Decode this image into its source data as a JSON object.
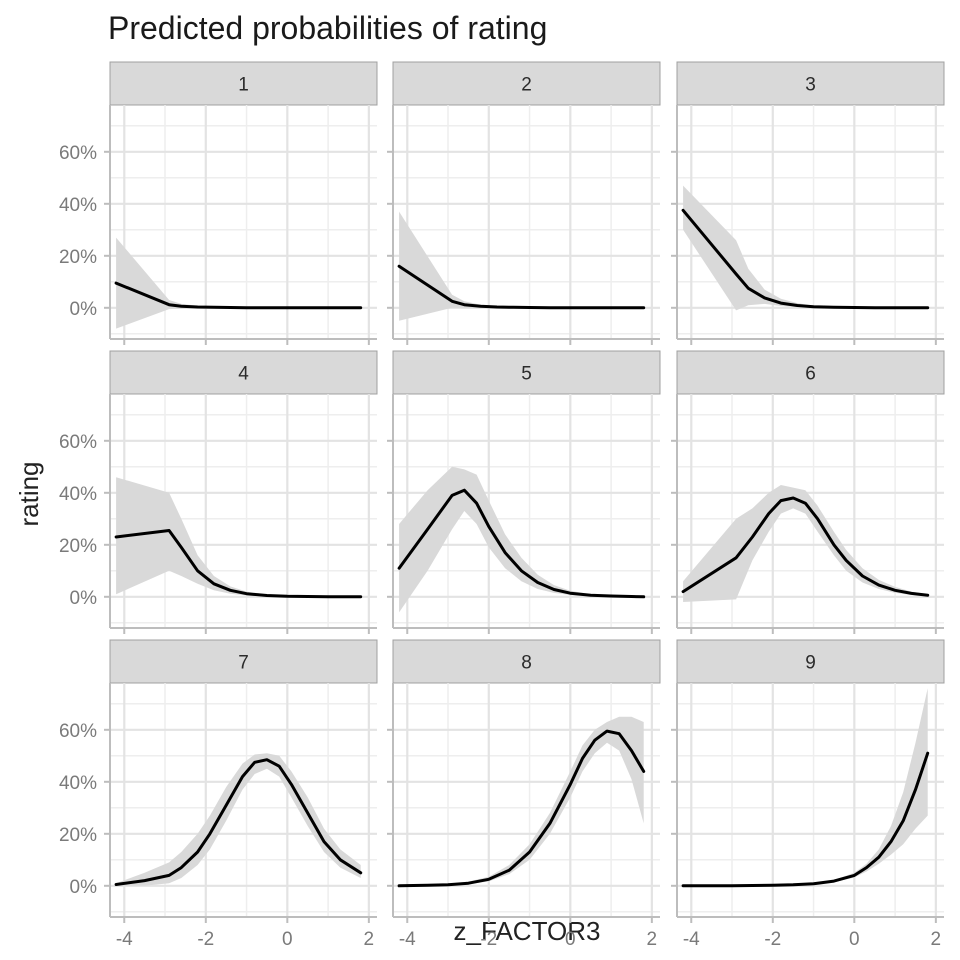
{
  "chart_data": {
    "type": "line",
    "title": "Predicted probabilities of rating",
    "xlabel": "z_FACTOR3",
    "ylabel": "rating",
    "xlim": [
      -4.35,
      2.2
    ],
    "ylim": [
      -0.12,
      0.78
    ],
    "x_ticks": [
      -4,
      -2,
      0,
      2
    ],
    "x_tick_labels": [
      "-4",
      "-2",
      "0",
      "2"
    ],
    "y_ticks": [
      0,
      0.2,
      0.4,
      0.6
    ],
    "y_tick_labels": [
      "0%",
      "20%",
      "40%",
      "60%"
    ],
    "grid": true,
    "legend": "none",
    "line_color": "#000000",
    "ribbon_color": "#d9d9d9",
    "strip_color": "#d9d9d9",
    "panels": [
      {
        "label": "1",
        "x": [
          -4.2,
          -2.9,
          -2.6,
          -2.2,
          -1.8,
          -1.4,
          -1.0,
          -0.5,
          0.0,
          0.5,
          1.0,
          1.5,
          1.8
        ],
        "y": [
          0.095,
          0.012,
          0.006,
          0.003,
          0.002,
          0.001,
          0.0,
          0.0,
          0.0,
          0.0,
          0.0,
          0.0,
          0.0
        ],
        "lower": [
          -0.08,
          -0.005,
          -0.003,
          -0.002,
          -0.001,
          0.0,
          0.0,
          0.0,
          0.0,
          0.0,
          0.0,
          0.0,
          0.0
        ],
        "upper": [
          0.27,
          0.03,
          0.015,
          0.008,
          0.004,
          0.002,
          0.001,
          0.0,
          0.0,
          0.0,
          0.0,
          0.0,
          0.0
        ]
      },
      {
        "label": "2",
        "x": [
          -4.2,
          -2.9,
          -2.6,
          -2.2,
          -1.8,
          -1.4,
          -1.0,
          -0.5,
          0.0,
          0.5,
          1.0,
          1.5,
          1.8
        ],
        "y": [
          0.16,
          0.025,
          0.012,
          0.006,
          0.003,
          0.002,
          0.001,
          0.0,
          0.0,
          0.0,
          0.0,
          0.0,
          0.0
        ],
        "lower": [
          -0.05,
          0.0,
          -0.002,
          -0.001,
          0.0,
          0.0,
          0.0,
          0.0,
          0.0,
          0.0,
          0.0,
          0.0,
          0.0
        ],
        "upper": [
          0.37,
          0.05,
          0.025,
          0.012,
          0.006,
          0.003,
          0.001,
          0.0,
          0.0,
          0.0,
          0.0,
          0.0,
          0.0
        ]
      },
      {
        "label": "3",
        "x": [
          -4.2,
          -2.9,
          -2.6,
          -2.2,
          -1.8,
          -1.4,
          -1.0,
          -0.5,
          0.0,
          0.5,
          1.0,
          1.5,
          1.8
        ],
        "y": [
          0.375,
          0.13,
          0.075,
          0.038,
          0.018,
          0.009,
          0.004,
          0.002,
          0.001,
          0.0,
          0.0,
          0.0,
          0.0
        ],
        "lower": [
          0.3,
          -0.01,
          0.01,
          0.015,
          0.007,
          0.003,
          0.001,
          0.0,
          0.0,
          0.0,
          0.0,
          0.0,
          0.0
        ],
        "upper": [
          0.47,
          0.26,
          0.15,
          0.07,
          0.035,
          0.018,
          0.008,
          0.004,
          0.002,
          0.001,
          0.0,
          0.0,
          0.0
        ]
      },
      {
        "label": "4",
        "x": [
          -4.2,
          -2.9,
          -2.6,
          -2.2,
          -1.8,
          -1.4,
          -1.0,
          -0.5,
          0.0,
          0.5,
          1.0,
          1.5,
          1.8
        ],
        "y": [
          0.23,
          0.255,
          0.19,
          0.1,
          0.05,
          0.025,
          0.012,
          0.005,
          0.002,
          0.001,
          0.0,
          0.0,
          0.0
        ],
        "lower": [
          0.01,
          0.1,
          0.08,
          0.05,
          0.025,
          0.012,
          0.005,
          0.002,
          0.0,
          0.0,
          0.0,
          0.0,
          0.0
        ],
        "upper": [
          0.46,
          0.4,
          0.3,
          0.16,
          0.08,
          0.04,
          0.02,
          0.009,
          0.004,
          0.002,
          0.001,
          0.0,
          0.0
        ]
      },
      {
        "label": "5",
        "x": [
          -4.2,
          -3.5,
          -2.9,
          -2.6,
          -2.3,
          -2.0,
          -1.6,
          -1.2,
          -0.8,
          -0.4,
          0.0,
          0.5,
          1.0,
          1.5,
          1.8
        ],
        "y": [
          0.11,
          0.26,
          0.39,
          0.41,
          0.36,
          0.27,
          0.17,
          0.1,
          0.055,
          0.028,
          0.014,
          0.006,
          0.003,
          0.001,
          0.0
        ],
        "lower": [
          -0.06,
          0.1,
          0.26,
          0.33,
          0.28,
          0.19,
          0.11,
          0.06,
          0.03,
          0.015,
          0.007,
          0.003,
          0.001,
          0.0,
          0.0
        ],
        "upper": [
          0.28,
          0.41,
          0.5,
          0.49,
          0.47,
          0.37,
          0.24,
          0.15,
          0.085,
          0.045,
          0.023,
          0.01,
          0.005,
          0.002,
          0.001
        ]
      },
      {
        "label": "6",
        "x": [
          -4.2,
          -2.9,
          -2.5,
          -2.1,
          -1.8,
          -1.5,
          -1.2,
          -0.9,
          -0.5,
          -0.2,
          0.2,
          0.6,
          1.0,
          1.4,
          1.8
        ],
        "y": [
          0.02,
          0.15,
          0.23,
          0.32,
          0.37,
          0.38,
          0.36,
          0.3,
          0.2,
          0.14,
          0.08,
          0.045,
          0.025,
          0.013,
          0.006
        ],
        "lower": [
          -0.02,
          -0.01,
          0.14,
          0.25,
          0.32,
          0.34,
          0.32,
          0.25,
          0.16,
          0.1,
          0.055,
          0.03,
          0.015,
          0.007,
          0.003
        ],
        "upper": [
          0.06,
          0.3,
          0.34,
          0.4,
          0.43,
          0.42,
          0.41,
          0.35,
          0.25,
          0.18,
          0.11,
          0.065,
          0.038,
          0.02,
          0.01
        ]
      },
      {
        "label": "7",
        "x": [
          -4.2,
          -3.5,
          -2.9,
          -2.6,
          -2.2,
          -1.9,
          -1.5,
          -1.1,
          -0.8,
          -0.5,
          -0.2,
          0.1,
          0.5,
          0.9,
          1.3,
          1.8
        ],
        "y": [
          0.005,
          0.02,
          0.04,
          0.07,
          0.13,
          0.2,
          0.31,
          0.42,
          0.475,
          0.485,
          0.46,
          0.39,
          0.28,
          0.17,
          0.1,
          0.05
        ],
        "lower": [
          0.0,
          0.0,
          0.01,
          0.03,
          0.08,
          0.14,
          0.25,
          0.37,
          0.43,
          0.45,
          0.42,
          0.34,
          0.23,
          0.13,
          0.07,
          0.03
        ],
        "upper": [
          0.01,
          0.05,
          0.09,
          0.13,
          0.2,
          0.27,
          0.38,
          0.47,
          0.505,
          0.51,
          0.5,
          0.44,
          0.34,
          0.22,
          0.14,
          0.08
        ]
      },
      {
        "label": "8",
        "x": [
          -4.2,
          -3.5,
          -3.0,
          -2.5,
          -2.0,
          -1.5,
          -1.0,
          -0.5,
          0.0,
          0.3,
          0.6,
          0.9,
          1.2,
          1.5,
          1.8
        ],
        "y": [
          0.0,
          0.002,
          0.004,
          0.01,
          0.025,
          0.06,
          0.13,
          0.24,
          0.39,
          0.49,
          0.56,
          0.595,
          0.585,
          0.52,
          0.44
        ],
        "lower": [
          0.0,
          0.0,
          0.002,
          0.006,
          0.017,
          0.045,
          0.1,
          0.2,
          0.34,
          0.44,
          0.51,
          0.55,
          0.52,
          0.41,
          0.24
        ],
        "upper": [
          0.001,
          0.004,
          0.008,
          0.016,
          0.035,
          0.08,
          0.16,
          0.28,
          0.44,
          0.54,
          0.6,
          0.63,
          0.65,
          0.65,
          0.63
        ]
      },
      {
        "label": "9",
        "x": [
          -4.2,
          -3.5,
          -3.0,
          -2.5,
          -2.0,
          -1.5,
          -1.0,
          -0.5,
          0.0,
          0.3,
          0.6,
          0.9,
          1.2,
          1.5,
          1.8
        ],
        "y": [
          0.0,
          0.0,
          0.0,
          0.001,
          0.002,
          0.004,
          0.008,
          0.018,
          0.04,
          0.07,
          0.11,
          0.17,
          0.25,
          0.37,
          0.51
        ],
        "lower": [
          0.0,
          0.0,
          0.0,
          0.0,
          0.001,
          0.003,
          0.006,
          0.014,
          0.032,
          0.055,
          0.085,
          0.12,
          0.16,
          0.22,
          0.27
        ],
        "upper": [
          0.0,
          0.001,
          0.001,
          0.002,
          0.003,
          0.006,
          0.011,
          0.022,
          0.05,
          0.085,
          0.14,
          0.23,
          0.36,
          0.55,
          0.76
        ]
      }
    ]
  }
}
